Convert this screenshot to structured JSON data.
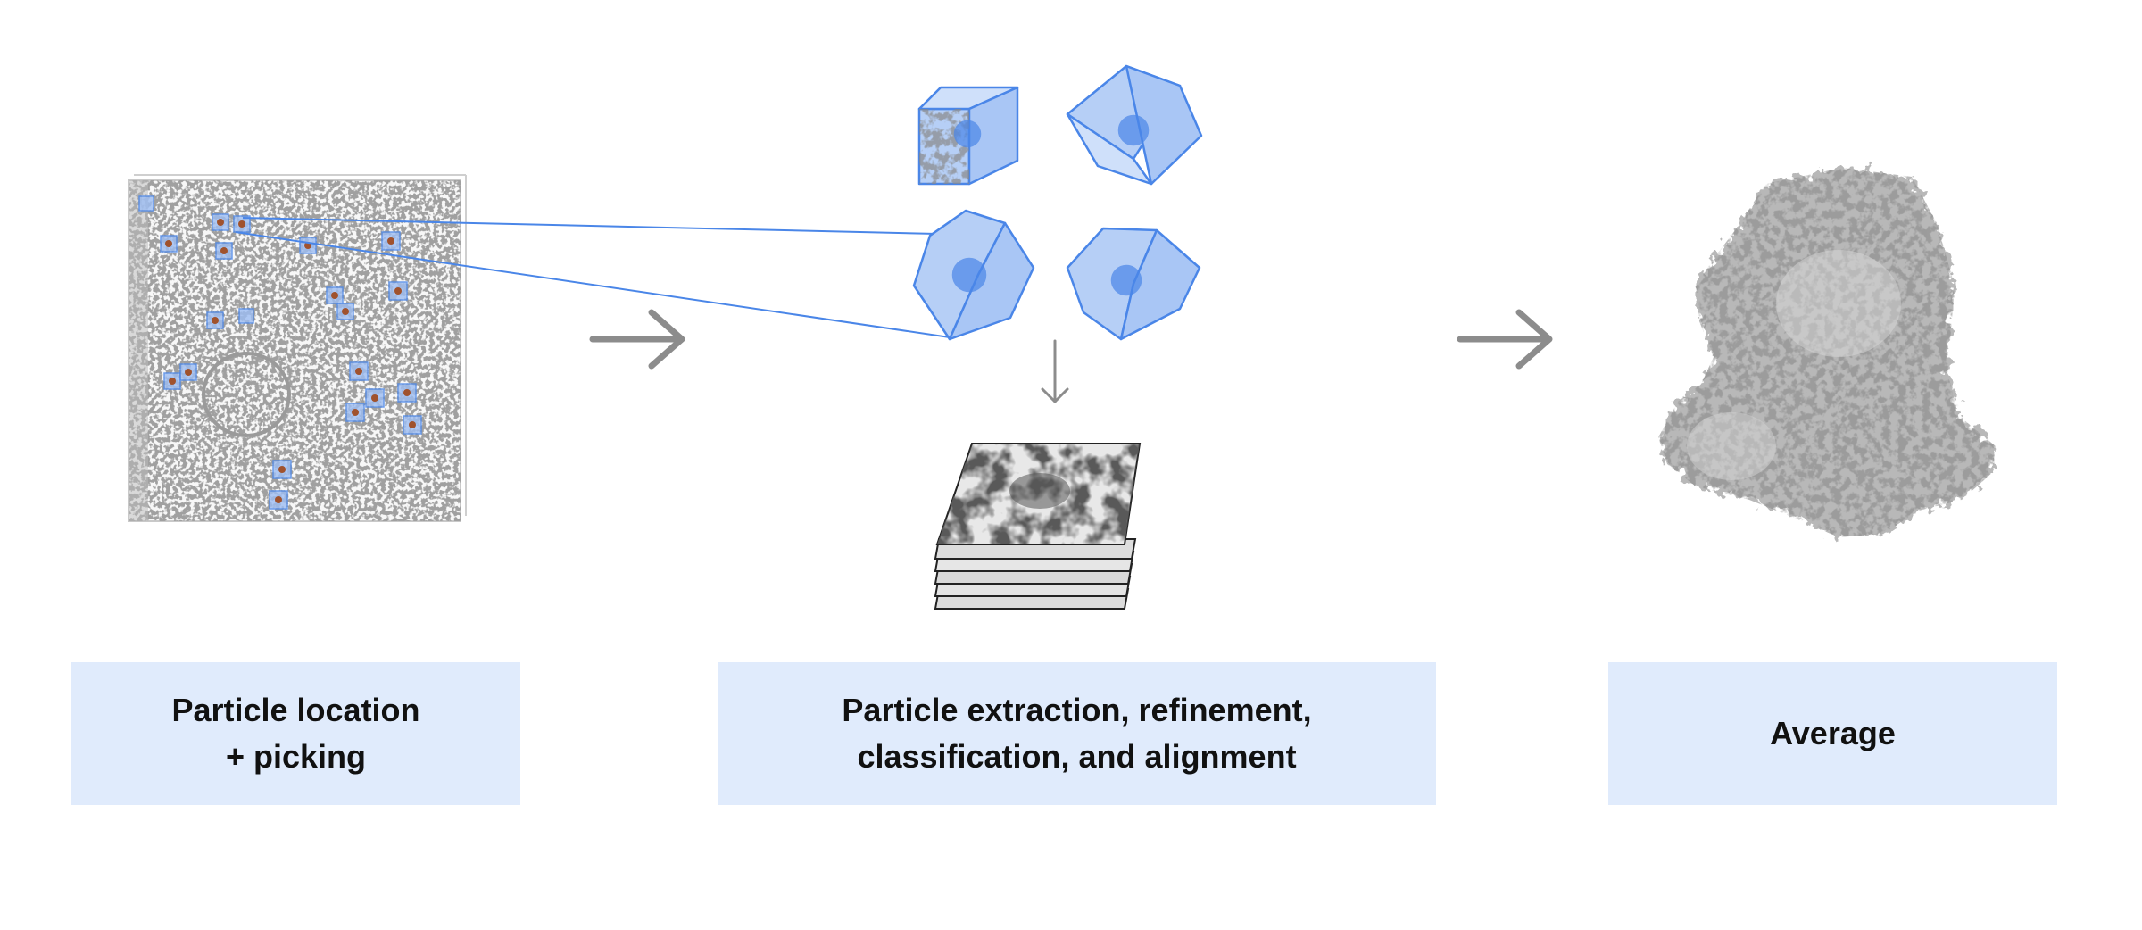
{
  "steps": [
    {
      "id": "picking",
      "label_lines": [
        "Particle location",
        "+ picking"
      ]
    },
    {
      "id": "refinement",
      "label_lines": [
        "Particle extraction, refinement,",
        "classification, and alignment"
      ]
    },
    {
      "id": "average",
      "label_lines": [
        "Average"
      ]
    }
  ],
  "colors": {
    "label_box_fill": "#e0ebfc",
    "label_text": "#111111",
    "flow_arrow": "#8c8c8c",
    "particle_box": "#4a86e8",
    "particle_box_fill": "#a9c6f5",
    "density_gray": "#9a9a9a"
  },
  "icons": {
    "flow_arrow": "arrow-right-icon",
    "down_arrow": "arrow-down-icon"
  }
}
